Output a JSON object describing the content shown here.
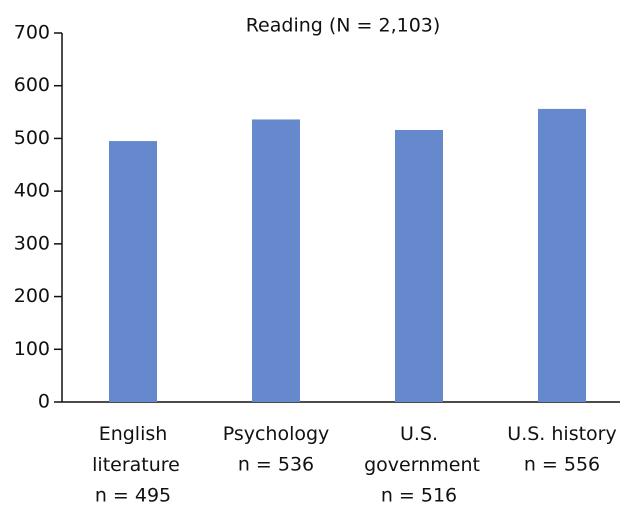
{
  "chart_data": {
    "type": "bar",
    "title": "Reading (N = 2,103)",
    "categories": [
      "English literature",
      "Psychology",
      "U.S. government",
      "U.S. history"
    ],
    "values": [
      495,
      536,
      516,
      556
    ],
    "value_labels": [
      "n = 495",
      "n = 536",
      "n = 516",
      "n = 556"
    ],
    "color": "#6688cc",
    "ylim": [
      0,
      700
    ],
    "yticks": [
      0,
      100,
      200,
      300,
      400,
      500,
      600,
      700
    ],
    "grid": false
  }
}
